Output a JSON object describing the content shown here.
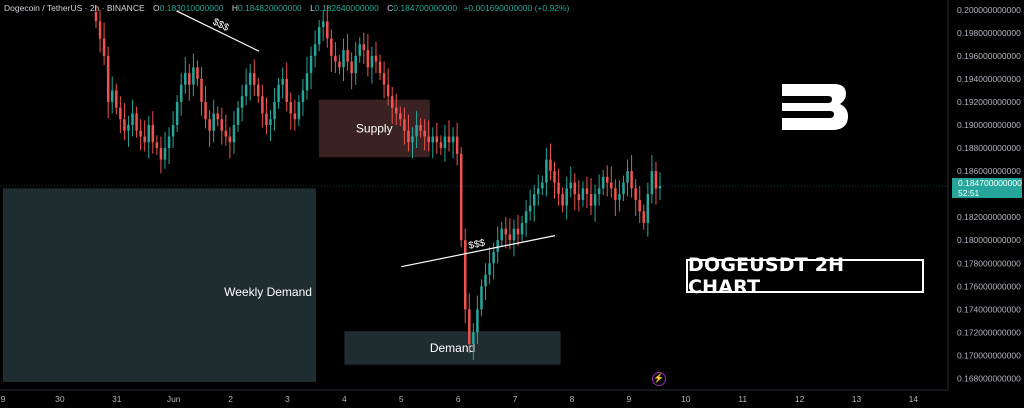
{
  "header": {
    "symbol": "Dogecoin / TetherUS · 2h · BINANCE",
    "open_label": "O",
    "open": "0.183010000000",
    "high_label": "H",
    "high": "0.184820000000",
    "low_label": "L",
    "low": "0.182640000000",
    "close_label": "C",
    "close": "0.184700000000",
    "change": "+0.001690000000 (+0.92%)"
  },
  "title_box": "DOGEUSDT 2H CHART",
  "price_tag": {
    "price": "0.184700000000",
    "countdown": "52:51"
  },
  "brand_icon": "brand-b-logo",
  "flash_icon": "lightning-icon",
  "colors": {
    "up": "#26a69a",
    "down": "#ef5350",
    "supply_zone": "#3a2222",
    "demand_zone": "#1f2d30"
  },
  "chart_data": {
    "type": "candlestick",
    "ylim": [
      0.167,
      0.2005
    ],
    "y_ticks": [
      "0.200000000000",
      "0.198000000000",
      "0.196000000000",
      "0.194000000000",
      "0.192000000000",
      "0.190000000000",
      "0.188000000000",
      "0.186000000000",
      "0.184000000000",
      "0.182000000000",
      "0.180000000000",
      "0.178000000000",
      "0.176000000000",
      "0.174000000000",
      "0.172000000000",
      "0.170000000000",
      "0.168000000000"
    ],
    "x_ticks": [
      "9",
      "30",
      "31",
      "Jun",
      "2",
      "3",
      "4",
      "5",
      "6",
      "7",
      "8",
      "9",
      "10",
      "11",
      "12",
      "13",
      "14"
    ],
    "current_price": 0.1847,
    "zones": [
      {
        "label": "Supply",
        "from_day": 5.55,
        "to_day": 7.5,
        "low": 0.1872,
        "high": 0.1922
      },
      {
        "label": "Demand",
        "from_day": 6.0,
        "to_day": 9.8,
        "low": 0.1692,
        "high": 0.1721
      },
      {
        "label": "Weekly Demand",
        "from_day": 0,
        "to_day": 5.5,
        "low": 0.1677,
        "high": 0.1845
      }
    ],
    "annotations": [
      {
        "text": "$$$",
        "from": [
          3.05,
          0.1999
        ],
        "to": [
          4.5,
          0.1964
        ]
      },
      {
        "text": "$$$",
        "from": [
          7.0,
          0.1777
        ],
        "to": [
          9.7,
          0.1804
        ]
      }
    ],
    "closes": [
      0.199,
      0.1975,
      0.196,
      0.192,
      0.193,
      0.1915,
      0.1905,
      0.1895,
      0.19,
      0.191,
      0.1895,
      0.189,
      0.1885,
      0.19,
      0.1885,
      0.188,
      0.187,
      0.188,
      0.189,
      0.19,
      0.192,
      0.1935,
      0.1945,
      0.1935,
      0.195,
      0.194,
      0.192,
      0.1905,
      0.1895,
      0.191,
      0.1905,
      0.1895,
      0.189,
      0.1885,
      0.19,
      0.1915,
      0.1925,
      0.1935,
      0.1945,
      0.1935,
      0.1925,
      0.191,
      0.19,
      0.1905,
      0.192,
      0.1935,
      0.194,
      0.192,
      0.191,
      0.1905,
      0.192,
      0.193,
      0.1945,
      0.196,
      0.197,
      0.1985,
      0.199,
      0.1975,
      0.196,
      0.1955,
      0.195,
      0.1965,
      0.1955,
      0.1945,
      0.196,
      0.197,
      0.1965,
      0.195,
      0.196,
      0.1955,
      0.1945,
      0.1935,
      0.1925,
      0.1915,
      0.191,
      0.1905,
      0.1895,
      0.1885,
      0.189,
      0.19,
      0.1895,
      0.189,
      0.1885,
      0.189,
      0.1885,
      0.188,
      0.189,
      0.1885,
      0.189,
      0.1875,
      0.18,
      0.174,
      0.171,
      0.172,
      0.174,
      0.176,
      0.177,
      0.178,
      0.179,
      0.18,
      0.181,
      0.1805,
      0.18,
      0.181,
      0.1805,
      0.1815,
      0.1825,
      0.183,
      0.184,
      0.1845,
      0.185,
      0.187,
      0.186,
      0.185,
      0.184,
      0.183,
      0.1845,
      0.185,
      0.184,
      0.1835,
      0.1845,
      0.184,
      0.183,
      0.184,
      0.1845,
      0.1855,
      0.185,
      0.1845,
      0.1835,
      0.184,
      0.185,
      0.186,
      0.1845,
      0.1835,
      0.1825,
      0.1815,
      0.184,
      0.186,
      0.1845,
      0.1847
    ]
  }
}
